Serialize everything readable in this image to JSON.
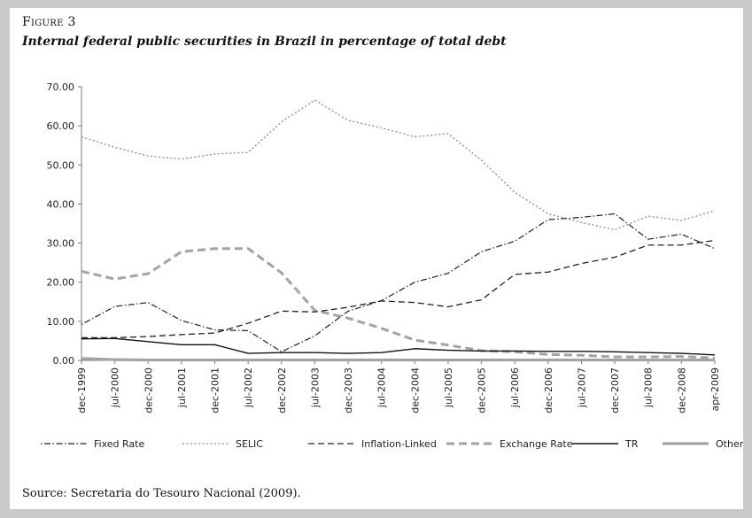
{
  "figure": {
    "label": "Figure 3",
    "title": "Internal federal public securities in Brazil in percentage of total debt",
    "source": "Source: Secretaria do Tesouro Nacional (2009)."
  },
  "chart_data": {
    "type": "line",
    "title": "Internal federal public securities in Brazil in percentage of total debt",
    "xlabel": "",
    "ylabel": "",
    "ylim": [
      0,
      70
    ],
    "yticks": [
      "0.00",
      "10.00",
      "20.00",
      "30.00",
      "40.00",
      "50.00",
      "60.00",
      "70.00"
    ],
    "grid": false,
    "legend_position": "bottom",
    "categories": [
      "dec-1999",
      "jul-2000",
      "dec-2000",
      "jul-2001",
      "dec-2001",
      "jul-2002",
      "dec-2002",
      "jul-2003",
      "dec-2003",
      "jul-2004",
      "dec-2004",
      "jul-2005",
      "dec-2005",
      "jul-2006",
      "dec-2006",
      "jul-2007",
      "dec-2007",
      "jul-2008",
      "dec-2008",
      "apr-2009"
    ],
    "series": [
      {
        "name": "Fixed Rate",
        "style": "dotdash",
        "color": "#222222",
        "values": [
          9.2,
          13.8,
          14.8,
          10.2,
          7.8,
          7.6,
          2.2,
          6.3,
          12.6,
          15.3,
          20.0,
          22.3,
          27.8,
          30.5,
          36.0,
          36.6,
          37.5,
          31.0,
          32.3,
          28.6
        ]
      },
      {
        "name": "SELIC",
        "style": "dotted",
        "color": "#8a8a8a",
        "values": [
          57.2,
          54.5,
          52.3,
          51.5,
          52.8,
          53.2,
          61.0,
          66.6,
          61.4,
          59.5,
          57.2,
          58.0,
          51.2,
          43.0,
          37.5,
          35.3,
          33.4,
          36.9,
          35.8,
          38.3
        ]
      },
      {
        "name": "Inflation-Linked",
        "style": "dashed",
        "color": "#222222",
        "values": [
          5.8,
          5.8,
          6.1,
          6.6,
          7.0,
          9.5,
          12.6,
          12.4,
          13.6,
          15.2,
          14.8,
          13.7,
          15.5,
          22.0,
          22.6,
          24.8,
          26.4,
          29.5,
          29.5,
          30.7
        ]
      },
      {
        "name": "Exchange Rate",
        "style": "thick-dashed",
        "color": "#a3a3a3",
        "values": [
          22.8,
          20.8,
          22.2,
          27.8,
          28.6,
          28.6,
          22.4,
          12.8,
          10.8,
          8.2,
          5.2,
          3.9,
          2.5,
          2.2,
          1.5,
          1.3,
          0.9,
          0.9,
          1.0,
          0.6
        ]
      },
      {
        "name": "TR",
        "style": "solid",
        "color": "#111111",
        "values": [
          5.5,
          5.6,
          4.8,
          4.0,
          4.0,
          1.8,
          2.0,
          2.0,
          1.8,
          2.0,
          3.0,
          2.6,
          2.4,
          2.4,
          2.3,
          2.3,
          2.2,
          2.0,
          1.8,
          1.4
        ]
      },
      {
        "name": "Others",
        "style": "thick-solid",
        "color": "#a3a3a3",
        "values": [
          0.5,
          0.2,
          0.1,
          0.1,
          0.1,
          0.1,
          0.1,
          0.1,
          0.1,
          0.1,
          0.1,
          0.1,
          0.1,
          0.1,
          0.1,
          0.1,
          0.1,
          0.1,
          0.1,
          0.1
        ]
      }
    ]
  }
}
